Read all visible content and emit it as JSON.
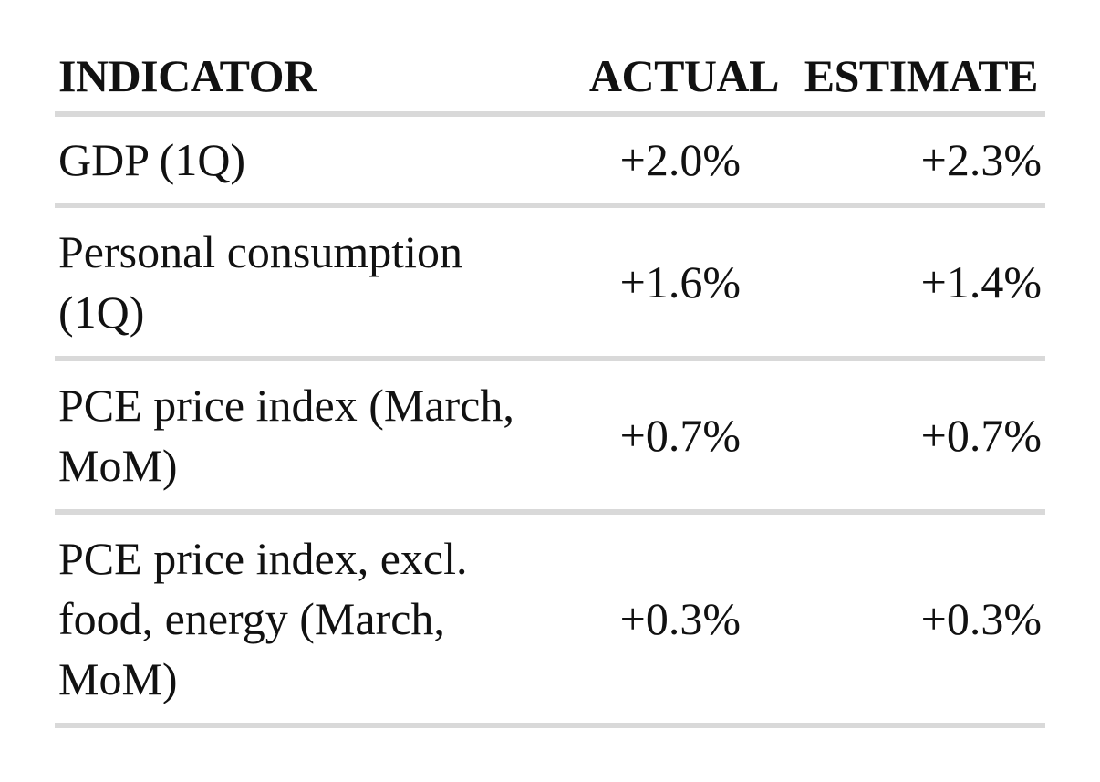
{
  "header": {
    "indicator": "INDICATOR",
    "actual": "ACTUAL",
    "estimate": "ESTIMATE"
  },
  "rows": [
    {
      "indicator": "GDP (1Q)",
      "actual": "+2.0%",
      "estimate": "+2.3%"
    },
    {
      "indicator": "Personal consumption (1Q)",
      "actual": "+1.6%",
      "estimate": "+1.4%"
    },
    {
      "indicator": "PCE price index (March, MoM)",
      "actual": "+0.7%",
      "estimate": "+0.7%"
    },
    {
      "indicator": "PCE price index, excl. food, energy (March, MoM)",
      "actual": "+0.3%",
      "estimate": "+0.3%"
    }
  ],
  "colors": {
    "text": "#111111",
    "divider": "#d9d9d9",
    "background": "#ffffff"
  }
}
